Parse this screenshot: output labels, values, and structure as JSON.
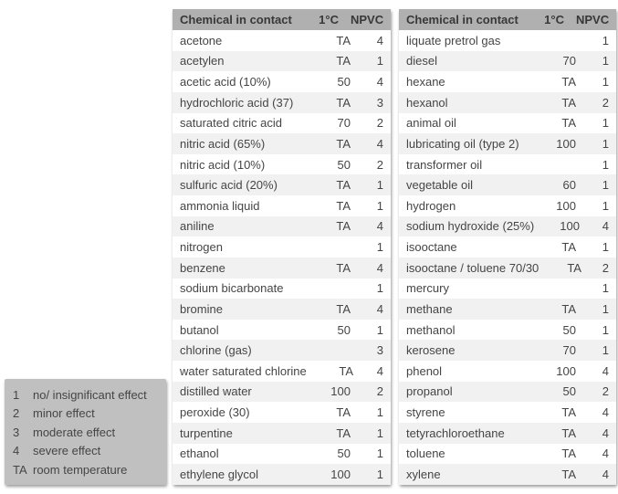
{
  "colors": {
    "header_bg": "#b0b0b0",
    "header_text": "#383838",
    "row_bg": "#ffffff",
    "row_alt_bg": "#f1f1f1",
    "legend_bg": "#c0c0c0",
    "text_color": "#454545"
  },
  "legend": {
    "items": [
      {
        "key": "1",
        "label": "no/ insignificant effect"
      },
      {
        "key": "2",
        "label": "minor effect"
      },
      {
        "key": "3",
        "label": "moderate effect"
      },
      {
        "key": "4",
        "label": "severe effect"
      },
      {
        "key": "TA",
        "label": "room temperature"
      }
    ]
  },
  "tables": [
    {
      "headers": {
        "chemical": "Chemical in contact",
        "temp": "1°C",
        "npvc": "NPVC"
      },
      "rows": [
        {
          "chemical": "acetone",
          "temp": "TA",
          "npvc": "4"
        },
        {
          "chemical": "acetylen",
          "temp": "TA",
          "npvc": "1"
        },
        {
          "chemical": "acetic acid (10%)",
          "temp": "50",
          "npvc": "4"
        },
        {
          "chemical": "hydrochloric acid (37)",
          "temp": "TA",
          "npvc": "3"
        },
        {
          "chemical": "saturated citric acid",
          "temp": "70",
          "npvc": "2"
        },
        {
          "chemical": "nitric acid (65%)",
          "temp": "TA",
          "npvc": "4"
        },
        {
          "chemical": "nitric acid (10%)",
          "temp": "50",
          "npvc": "2"
        },
        {
          "chemical": "sulfuric acid (20%)",
          "temp": "TA",
          "npvc": "1"
        },
        {
          "chemical": "ammonia liquid",
          "temp": "TA",
          "npvc": "1"
        },
        {
          "chemical": "aniline",
          "temp": "TA",
          "npvc": "4"
        },
        {
          "chemical": "nitrogen",
          "temp": "",
          "npvc": "1"
        },
        {
          "chemical": "benzene",
          "temp": "TA",
          "npvc": "4"
        },
        {
          "chemical": "sodium bicarbonate",
          "temp": "",
          "npvc": "1"
        },
        {
          "chemical": "bromine",
          "temp": "TA",
          "npvc": "4"
        },
        {
          "chemical": "butanol",
          "temp": "50",
          "npvc": "1"
        },
        {
          "chemical": "chlorine (gas)",
          "temp": "",
          "npvc": "3"
        },
        {
          "chemical": "water saturated chlorine",
          "temp": "TA",
          "npvc": "4"
        },
        {
          "chemical": "distilled water",
          "temp": "100",
          "npvc": "2"
        },
        {
          "chemical": "peroxide (30)",
          "temp": "TA",
          "npvc": "1"
        },
        {
          "chemical": "turpentine",
          "temp": "TA",
          "npvc": "1"
        },
        {
          "chemical": "ethanol",
          "temp": "50",
          "npvc": "1"
        },
        {
          "chemical": "ethylene glycol",
          "temp": "100",
          "npvc": "1"
        }
      ]
    },
    {
      "headers": {
        "chemical": "Chemical in contact",
        "temp": "1°C",
        "npvc": "NPVC"
      },
      "rows": [
        {
          "chemical": "liquate pretrol gas",
          "temp": "",
          "npvc": "1"
        },
        {
          "chemical": "diesel",
          "temp": "70",
          "npvc": "1"
        },
        {
          "chemical": "hexane",
          "temp": "TA",
          "npvc": "1"
        },
        {
          "chemical": "hexanol",
          "temp": "TA",
          "npvc": "2"
        },
        {
          "chemical": "animal oil",
          "temp": "TA",
          "npvc": "1"
        },
        {
          "chemical": "lubricating oil (type 2)",
          "temp": "100",
          "npvc": "1"
        },
        {
          "chemical": "transformer oil",
          "temp": "",
          "npvc": "1"
        },
        {
          "chemical": "vegetable oil",
          "temp": "60",
          "npvc": "1"
        },
        {
          "chemical": "hydrogen",
          "temp": "100",
          "npvc": "1"
        },
        {
          "chemical": "sodium hydroxide (25%)",
          "temp": "100",
          "npvc": "4"
        },
        {
          "chemical": "isooctane",
          "temp": "TA",
          "npvc": "1"
        },
        {
          "chemical": "isooctane / toluene 70/30",
          "temp": "TA",
          "npvc": "2"
        },
        {
          "chemical": "mercury",
          "temp": "",
          "npvc": "1"
        },
        {
          "chemical": "methane",
          "temp": "TA",
          "npvc": "1"
        },
        {
          "chemical": "methanol",
          "temp": "50",
          "npvc": "1"
        },
        {
          "chemical": "kerosene",
          "temp": "70",
          "npvc": "1"
        },
        {
          "chemical": "phenol",
          "temp": "100",
          "npvc": "4"
        },
        {
          "chemical": "propanol",
          "temp": "50",
          "npvc": "2"
        },
        {
          "chemical": "styrene",
          "temp": "TA",
          "npvc": "4"
        },
        {
          "chemical": "tetyrachloroethane",
          "temp": "TA",
          "npvc": "4"
        },
        {
          "chemical": "toluene",
          "temp": "TA",
          "npvc": "4"
        },
        {
          "chemical": "xylene",
          "temp": "TA",
          "npvc": "4"
        }
      ]
    }
  ]
}
